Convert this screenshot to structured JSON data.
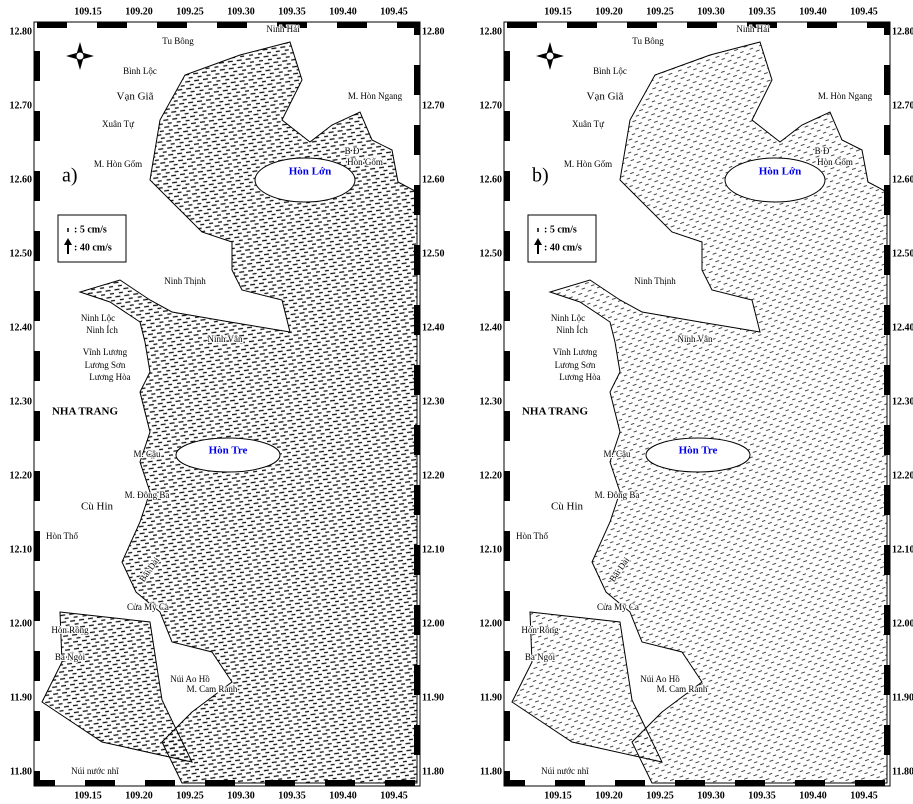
{
  "lon_ticks": [
    "109.15",
    "109.20",
    "109.25",
    "109.30",
    "109.35",
    "109.40",
    "109.45"
  ],
  "lat_ticks": [
    "12.80",
    "12.70",
    "12.60",
    "12.50",
    "12.40",
    "12.30",
    "12.20",
    "12.10",
    "12.00",
    "11.90",
    "11.80"
  ],
  "panels": [
    {
      "label": "a)"
    },
    {
      "label": "b)"
    }
  ],
  "legend": [
    ": 5 cm/s",
    ": 40 cm/s"
  ],
  "places": [
    "Tu Bông",
    "Ninh Hải",
    "Bình Lộc",
    "Vạn Giã",
    "M. Hòn Ngang",
    "Xuân Tự",
    "M. Hòn Gốm",
    "Hòn Lớn",
    "B Đ",
    "Hòn Gốm",
    "Ninh Thịnh",
    "Ninh Lộc",
    "Ninh Ích",
    "Ninh Vân",
    "Vĩnh Lương",
    "Lương Sơn",
    "Lương Hòa",
    "NHA TRANG",
    "Hòn Tre",
    "M. Cậu",
    "M. Đông Ba",
    "Cù Hin",
    "Hòn Thổ",
    "Bãi Dài",
    "Cửa Mỹ Ca",
    "Hòn Rồng",
    "Ba Ngòi",
    "Núi Ao Hồ",
    "M. Cam Ranh",
    "Núi nước nhĩ"
  ]
}
